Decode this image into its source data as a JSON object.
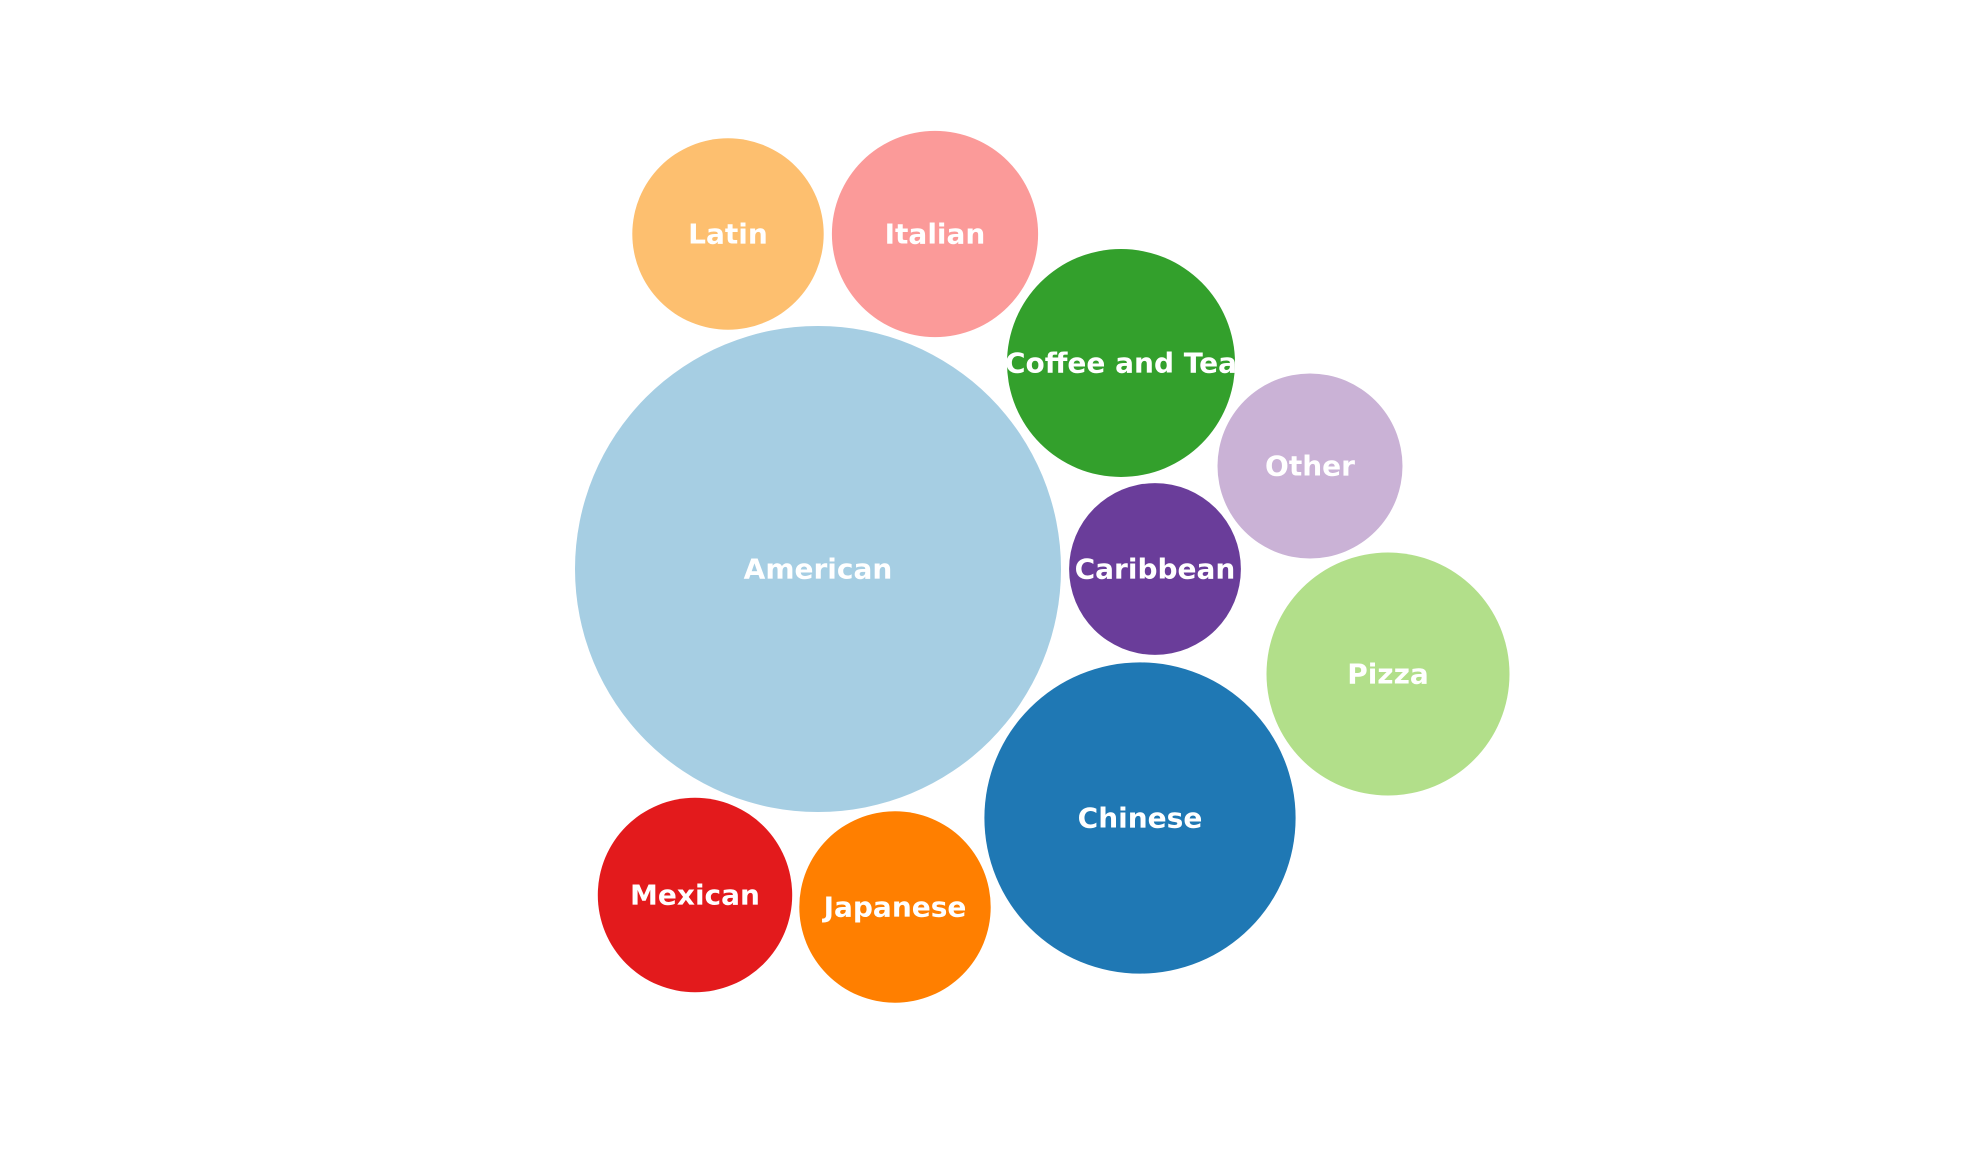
{
  "chart_data": {
    "type": "bubble",
    "title": "",
    "bubbles": [
      {
        "name": "American",
        "value": 100,
        "color": "#a6cee3"
      },
      {
        "name": "Chinese",
        "value": 41,
        "color": "#1f78b4"
      },
      {
        "name": "Pizza",
        "value": 25,
        "color": "#b2df8a"
      },
      {
        "name": "Coffee and Tea",
        "value": 22,
        "color": "#33a02c"
      },
      {
        "name": "Italian",
        "value": 18,
        "color": "#fb9a99"
      },
      {
        "name": "Mexican",
        "value": 16,
        "color": "#e31a1c"
      },
      {
        "name": "Latin",
        "value": 15.5,
        "color": "#fdbf6f"
      },
      {
        "name": "Japanese",
        "value": 15.5,
        "color": "#ff7f00"
      },
      {
        "name": "Other",
        "value": 14.5,
        "color": "#cab2d6"
      },
      {
        "name": "Caribbean",
        "value": 12.5,
        "color": "#6a3d9a"
      }
    ]
  }
}
